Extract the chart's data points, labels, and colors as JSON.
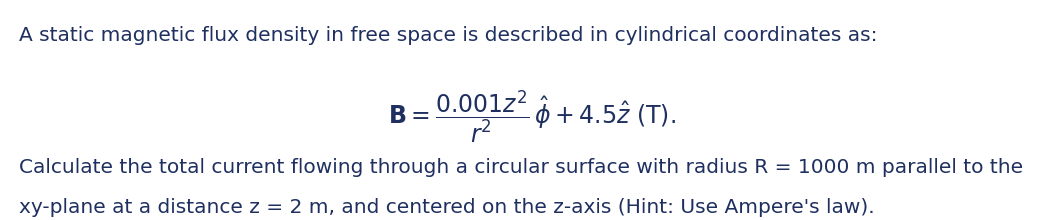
{
  "background_color": "#ffffff",
  "text_color": "#1f3060",
  "line1": "A static magnetic flux density in free space is described in cylindrical coordinates as:",
  "equation": "$\\mathbf{B} = \\dfrac{0.001z^2}{r^2}\\,\\hat{\\phi} + 4.5\\hat{z}$ (T).",
  "line3": "Calculate the total current flowing through a circular surface with radius R = 1000 m parallel to the",
  "line4": "xy-plane at a distance z = 2 m, and centered on the z-axis (Hint: Use Ampere's law).",
  "font_size_text": 14.5,
  "font_size_eq": 17,
  "figsize": [
    10.64,
    2.2
  ],
  "dpi": 100
}
